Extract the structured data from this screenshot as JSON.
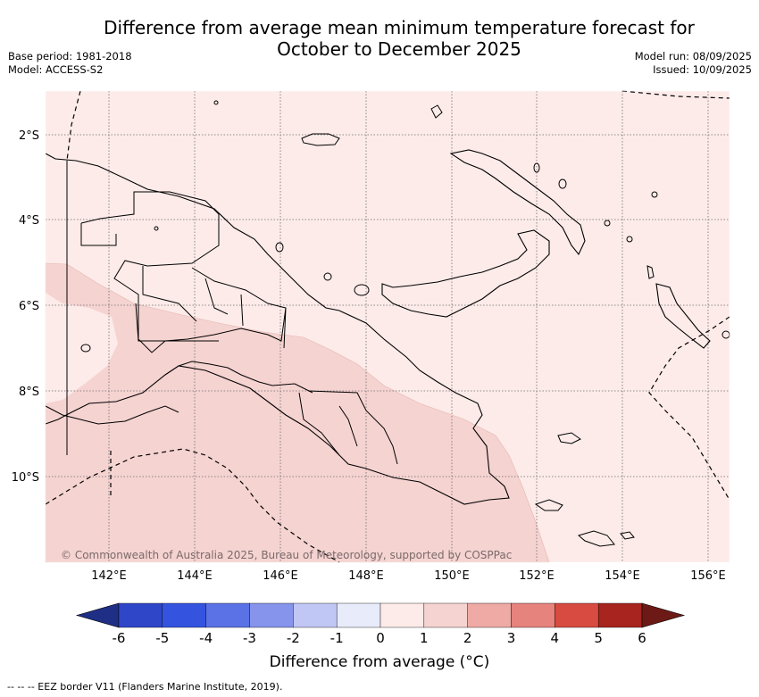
{
  "title": {
    "line1": "Difference from average mean minimum temperature forecast for",
    "line2": "October to December 2025"
  },
  "meta": {
    "base_period": "Base period: 1981-2018",
    "model": "Model: ACCESS-S2",
    "model_run": "Model run: 08/09/2025",
    "issued": "Issued: 10/09/2025"
  },
  "map": {
    "longitude_ticks": [
      "142°E",
      "144°E",
      "146°E",
      "148°E",
      "150°E",
      "152°E",
      "154°E",
      "156°E"
    ],
    "latitude_ticks": [
      "2°S",
      "4°S",
      "6°S",
      "8°S",
      "10°S"
    ],
    "copyright": "© Commonwealth of Australia 2025, Bureau of Meteorology, supported by COSPPac",
    "colors": {
      "anomaly_0_to_1": "#fcebe9",
      "anomaly_1_to_2": "#f5d3d1",
      "coastline": "#000000",
      "grid": "#6b6b6b"
    }
  },
  "colorbar": {
    "title": "Difference from average (°C)",
    "tick_labels": [
      "-6",
      "-5",
      "-4",
      "-3",
      "-2",
      "-1",
      "0",
      "1",
      "2",
      "3",
      "4",
      "5",
      "6"
    ],
    "colors": [
      "#1f2f86",
      "#2f46c8",
      "#3454e0",
      "#5b72e6",
      "#8694ec",
      "#c1c7f4",
      "#e8ebfa",
      "#fcebe9",
      "#f5d3d1",
      "#efaaa5",
      "#e6837c",
      "#d84b40",
      "#a8241f",
      "#6d1a16"
    ]
  },
  "footer": {
    "eez_note": "--  --  -- EEZ border V11 (Flanders Marine Institute, 2019)."
  }
}
